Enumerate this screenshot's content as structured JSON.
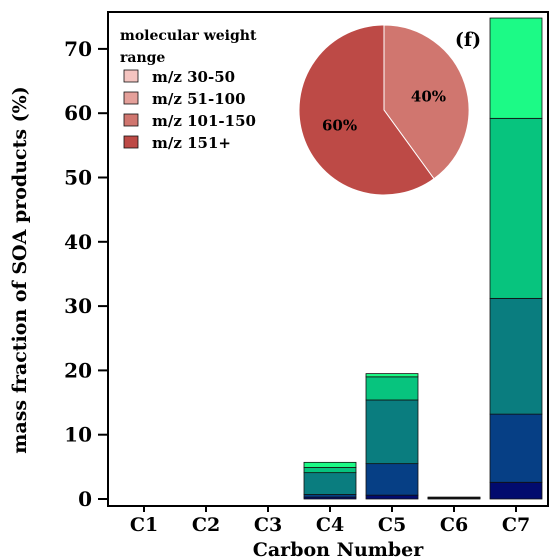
{
  "chart_data": [
    {
      "type": "bar",
      "stacked": true,
      "panel_label": "(f)",
      "xlabel": "Carbon Number",
      "ylabel": "mass fraction of SOA products (%)",
      "categories": [
        "C1",
        "C2",
        "C3",
        "C4",
        "C5",
        "C6",
        "C7"
      ],
      "ylim": [
        0,
        75
      ],
      "yticks": [
        0,
        10,
        20,
        30,
        40,
        50,
        60,
        70
      ],
      "grid": false,
      "series": [
        {
          "color": "#020b6e",
          "values": [
            0,
            0,
            0,
            0.3,
            0.6,
            0.1,
            2.6
          ]
        },
        {
          "color": "#063f85",
          "values": [
            0,
            0,
            0,
            0.4,
            4.9,
            0.05,
            10.6
          ]
        },
        {
          "color": "#0a7d7f",
          "values": [
            0,
            0,
            0,
            3.4,
            9.9,
            0.05,
            18.0
          ]
        },
        {
          "color": "#07c47e",
          "values": [
            0,
            0,
            0,
            0.8,
            3.6,
            0.05,
            28.0
          ]
        },
        {
          "color": "#1cfa86",
          "values": [
            0,
            0,
            0,
            0.8,
            0.5,
            0.05,
            15.6
          ]
        }
      ]
    },
    {
      "type": "pie",
      "legend_title": "molecular weight range",
      "legend_entries": [
        {
          "label": "m/z 30-50",
          "color": "#f4c4c0"
        },
        {
          "label": "m/z 51-100",
          "color": "#e4a09a"
        },
        {
          "label": "m/z 101-150",
          "color": "#d0766f"
        },
        {
          "label": "m/z 151+",
          "color": "#bd4a46"
        }
      ],
      "slices": [
        {
          "value": 40,
          "label": "40%",
          "color": "#d0766f"
        },
        {
          "value": 60,
          "label": "60%",
          "color": "#bd4a46"
        }
      ]
    }
  ]
}
